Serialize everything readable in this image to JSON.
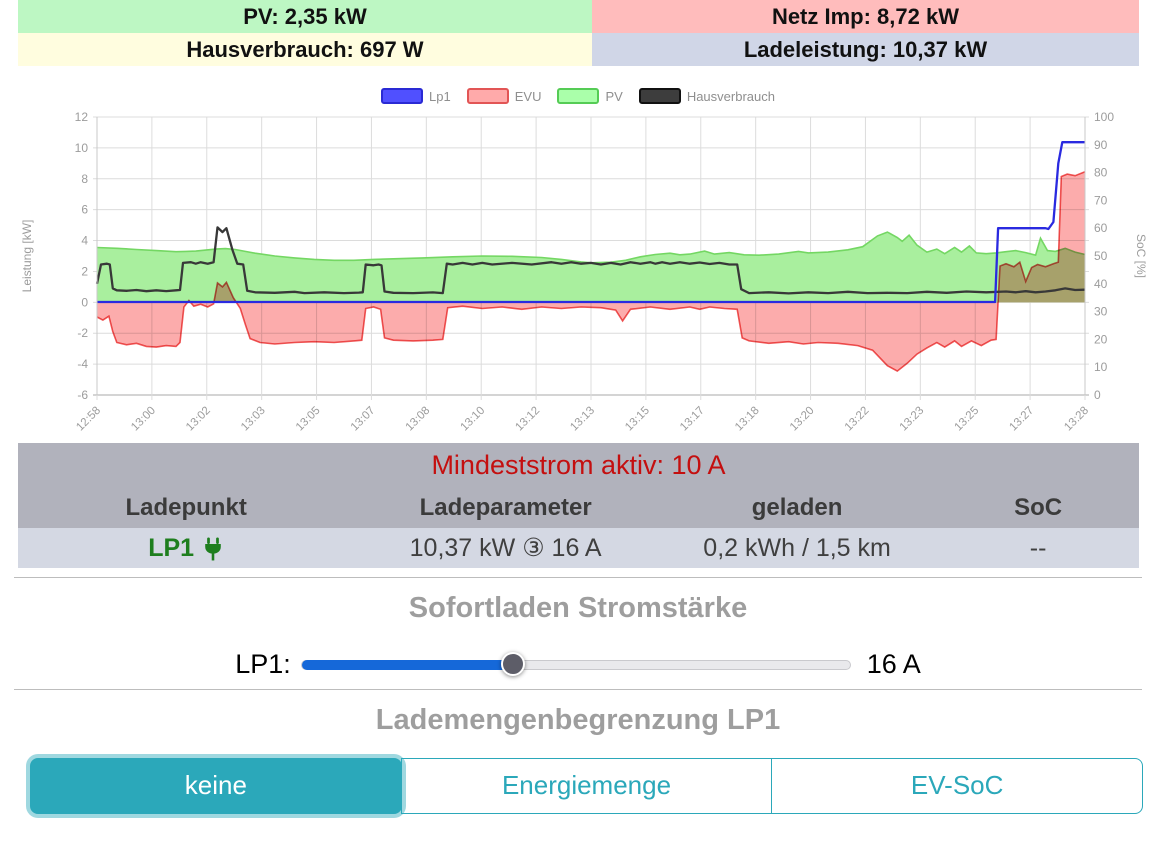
{
  "colors": {
    "accent_teal": "#2ba8ba",
    "slider_blue": "#1568d9",
    "lp1_green": "#1e7e1e",
    "caption_red": "#c40f0f",
    "table_header_bg": "#b1b2bc",
    "table_row_bg": "#d4d8e3"
  },
  "status_cells": {
    "pv": {
      "text": "PV: 2,35 kW",
      "bg": "#bdf7c3"
    },
    "grid": {
      "text": "Netz Imp: 8,72 kW",
      "bg": "#ffbcbc"
    },
    "house": {
      "text": "Hausverbrauch: 697 W",
      "bg": "#fffddf"
    },
    "charge": {
      "text": "Ladeleistung: 10,37 kW",
      "bg": "#d0d6e7"
    }
  },
  "chart_data": {
    "type": "area",
    "grid": true,
    "legend_position": "top",
    "left_axis": {
      "label": "Leistung [kW]",
      "min": -6,
      "max": 12,
      "tick_step": 2
    },
    "right_axis": {
      "label": "SoC [%]",
      "min": 0,
      "max": 100,
      "tick_step": 10
    },
    "x_ticks": [
      "12:58",
      "13:00",
      "13:02",
      "13:03",
      "13:05",
      "13:07",
      "13:08",
      "13:10",
      "13:12",
      "13:13",
      "13:15",
      "13:17",
      "13:18",
      "13:20",
      "13:22",
      "13:23",
      "13:25",
      "13:27",
      "13:28"
    ],
    "legend": [
      {
        "name": "Lp1",
        "fill": "#5050ff",
        "border": "#2a2ad4"
      },
      {
        "name": "EVU",
        "fill": "#ffaaaa",
        "border": "#e25555"
      },
      {
        "name": "PV",
        "fill": "#aaffaa",
        "border": "#55cc55"
      },
      {
        "name": "Hausverbrauch",
        "fill": "#3d3d3d",
        "border": "#111111"
      }
    ],
    "series": [
      {
        "name": "PV",
        "kind": "area",
        "unit": "kW",
        "fill": "#a9ef9e",
        "stroke": "#74d763",
        "points": [
          [
            0,
            3.55
          ],
          [
            0.02,
            3.5
          ],
          [
            0.04,
            3.42
          ],
          [
            0.06,
            3.35
          ],
          [
            0.08,
            3.28
          ],
          [
            0.09,
            3.3
          ],
          [
            0.1,
            3.32
          ],
          [
            0.11,
            3.38
          ],
          [
            0.12,
            3.45
          ],
          [
            0.13,
            3.48
          ],
          [
            0.14,
            3.42
          ],
          [
            0.15,
            3.3
          ],
          [
            0.16,
            3.18
          ],
          [
            0.18,
            3.0
          ],
          [
            0.2,
            2.88
          ],
          [
            0.22,
            2.78
          ],
          [
            0.24,
            2.72
          ],
          [
            0.26,
            2.72
          ],
          [
            0.28,
            2.78
          ],
          [
            0.3,
            2.82
          ],
          [
            0.33,
            2.88
          ],
          [
            0.36,
            2.95
          ],
          [
            0.39,
            3.0
          ],
          [
            0.42,
            2.98
          ],
          [
            0.45,
            2.9
          ],
          [
            0.47,
            2.78
          ],
          [
            0.49,
            2.62
          ],
          [
            0.5,
            2.56
          ],
          [
            0.52,
            2.6
          ],
          [
            0.535,
            2.72
          ],
          [
            0.55,
            2.95
          ],
          [
            0.565,
            3.1
          ],
          [
            0.58,
            3.18
          ],
          [
            0.59,
            3.08
          ],
          [
            0.6,
            3.12
          ],
          [
            0.615,
            3.32
          ],
          [
            0.625,
            3.12
          ],
          [
            0.64,
            3.22
          ],
          [
            0.655,
            3.08
          ],
          [
            0.67,
            3.05
          ],
          [
            0.69,
            3.12
          ],
          [
            0.71,
            3.3
          ],
          [
            0.72,
            3.2
          ],
          [
            0.74,
            3.25
          ],
          [
            0.76,
            3.4
          ],
          [
            0.775,
            3.6
          ],
          [
            0.79,
            4.3
          ],
          [
            0.8,
            4.55
          ],
          [
            0.81,
            4.2
          ],
          [
            0.815,
            3.95
          ],
          [
            0.822,
            4.35
          ],
          [
            0.83,
            3.7
          ],
          [
            0.84,
            3.25
          ],
          [
            0.85,
            3.45
          ],
          [
            0.858,
            3.15
          ],
          [
            0.868,
            3.55
          ],
          [
            0.875,
            3.25
          ],
          [
            0.883,
            3.65
          ],
          [
            0.89,
            3.2
          ],
          [
            0.9,
            3.15
          ],
          [
            0.91,
            3.2
          ],
          [
            0.92,
            3.28
          ],
          [
            0.93,
            3.35
          ],
          [
            0.94,
            3.22
          ],
          [
            0.95,
            3.05
          ],
          [
            0.955,
            4.15
          ],
          [
            0.962,
            3.35
          ],
          [
            0.97,
            3.3
          ],
          [
            0.98,
            3.5
          ],
          [
            0.99,
            3.25
          ],
          [
            1,
            3.1
          ]
        ]
      },
      {
        "name": "EVU",
        "kind": "area",
        "unit": "kW",
        "fill": "#fcacac",
        "stroke": "#ee5a5a",
        "blend": "multiply",
        "points": [
          [
            0,
            -0.95
          ],
          [
            0.006,
            -1.15
          ],
          [
            0.012,
            -0.9
          ],
          [
            0.016,
            -1.9
          ],
          [
            0.02,
            -2.6
          ],
          [
            0.03,
            -2.75
          ],
          [
            0.04,
            -2.65
          ],
          [
            0.05,
            -2.85
          ],
          [
            0.06,
            -2.9
          ],
          [
            0.07,
            -2.8
          ],
          [
            0.08,
            -2.85
          ],
          [
            0.084,
            -2.6
          ],
          [
            0.088,
            -0.3
          ],
          [
            0.093,
            0.12
          ],
          [
            0.098,
            -0.25
          ],
          [
            0.105,
            -0.12
          ],
          [
            0.112,
            -0.3
          ],
          [
            0.118,
            -0.1
          ],
          [
            0.122,
            1.25
          ],
          [
            0.127,
            1.0
          ],
          [
            0.131,
            1.3
          ],
          [
            0.138,
            0.3
          ],
          [
            0.145,
            -0.4
          ],
          [
            0.15,
            -1.4
          ],
          [
            0.155,
            -2.35
          ],
          [
            0.165,
            -2.6
          ],
          [
            0.18,
            -2.7
          ],
          [
            0.2,
            -2.6
          ],
          [
            0.22,
            -2.55
          ],
          [
            0.24,
            -2.6
          ],
          [
            0.26,
            -2.5
          ],
          [
            0.268,
            -2.45
          ],
          [
            0.272,
            -0.4
          ],
          [
            0.28,
            -0.3
          ],
          [
            0.287,
            -0.45
          ],
          [
            0.291,
            -2.3
          ],
          [
            0.3,
            -2.45
          ],
          [
            0.32,
            -2.5
          ],
          [
            0.34,
            -2.45
          ],
          [
            0.35,
            -2.4
          ],
          [
            0.355,
            -0.35
          ],
          [
            0.37,
            -0.25
          ],
          [
            0.39,
            -0.4
          ],
          [
            0.41,
            -0.3
          ],
          [
            0.43,
            -0.45
          ],
          [
            0.45,
            -0.3
          ],
          [
            0.47,
            -0.4
          ],
          [
            0.49,
            -0.3
          ],
          [
            0.51,
            -0.35
          ],
          [
            0.525,
            -0.5
          ],
          [
            0.532,
            -1.2
          ],
          [
            0.54,
            -0.45
          ],
          [
            0.56,
            -0.3
          ],
          [
            0.58,
            -0.45
          ],
          [
            0.6,
            -0.3
          ],
          [
            0.61,
            -0.45
          ],
          [
            0.62,
            -0.3
          ],
          [
            0.635,
            -0.4
          ],
          [
            0.648,
            -0.45
          ],
          [
            0.653,
            -2.3
          ],
          [
            0.66,
            -2.5
          ],
          [
            0.68,
            -2.65
          ],
          [
            0.7,
            -2.55
          ],
          [
            0.715,
            -2.7
          ],
          [
            0.73,
            -2.6
          ],
          [
            0.75,
            -2.65
          ],
          [
            0.77,
            -2.8
          ],
          [
            0.785,
            -3.1
          ],
          [
            0.8,
            -4.1
          ],
          [
            0.81,
            -4.45
          ],
          [
            0.82,
            -3.95
          ],
          [
            0.83,
            -3.35
          ],
          [
            0.84,
            -2.95
          ],
          [
            0.85,
            -2.6
          ],
          [
            0.858,
            -2.9
          ],
          [
            0.868,
            -2.5
          ],
          [
            0.875,
            -2.85
          ],
          [
            0.885,
            -2.5
          ],
          [
            0.895,
            -2.8
          ],
          [
            0.905,
            -2.45
          ],
          [
            0.91,
            -2.4
          ],
          [
            0.914,
            2.35
          ],
          [
            0.92,
            2.5
          ],
          [
            0.928,
            2.3
          ],
          [
            0.934,
            2.6
          ],
          [
            0.94,
            1.35
          ],
          [
            0.946,
            2.25
          ],
          [
            0.952,
            2.45
          ],
          [
            0.96,
            2.3
          ],
          [
            0.968,
            2.5
          ],
          [
            0.973,
            2.6
          ],
          [
            0.976,
            8.15
          ],
          [
            0.982,
            8.3
          ],
          [
            0.99,
            8.2
          ],
          [
            1,
            8.45
          ]
        ]
      },
      {
        "name": "Hausverbrauch",
        "kind": "line",
        "unit": "kW",
        "stroke": "#383838",
        "points": [
          [
            0,
            1.2
          ],
          [
            0.004,
            2.45
          ],
          [
            0.01,
            2.5
          ],
          [
            0.013,
            2.45
          ],
          [
            0.016,
            0.9
          ],
          [
            0.02,
            0.78
          ],
          [
            0.03,
            0.75
          ],
          [
            0.04,
            0.8
          ],
          [
            0.05,
            0.72
          ],
          [
            0.06,
            0.78
          ],
          [
            0.07,
            0.73
          ],
          [
            0.08,
            0.78
          ],
          [
            0.084,
            0.8
          ],
          [
            0.087,
            2.55
          ],
          [
            0.095,
            2.6
          ],
          [
            0.1,
            2.5
          ],
          [
            0.105,
            2.6
          ],
          [
            0.112,
            2.5
          ],
          [
            0.118,
            2.6
          ],
          [
            0.122,
            4.85
          ],
          [
            0.127,
            4.55
          ],
          [
            0.131,
            4.8
          ],
          [
            0.137,
            3.4
          ],
          [
            0.142,
            2.5
          ],
          [
            0.148,
            2.45
          ],
          [
            0.152,
            0.75
          ],
          [
            0.16,
            0.65
          ],
          [
            0.18,
            0.62
          ],
          [
            0.2,
            0.68
          ],
          [
            0.21,
            0.6
          ],
          [
            0.23,
            0.65
          ],
          [
            0.25,
            0.6
          ],
          [
            0.265,
            0.63
          ],
          [
            0.269,
            0.65
          ],
          [
            0.272,
            2.45
          ],
          [
            0.28,
            2.4
          ],
          [
            0.285,
            2.45
          ],
          [
            0.288,
            2.4
          ],
          [
            0.291,
            0.7
          ],
          [
            0.3,
            0.62
          ],
          [
            0.32,
            0.6
          ],
          [
            0.34,
            0.64
          ],
          [
            0.35,
            0.6
          ],
          [
            0.354,
            2.5
          ],
          [
            0.36,
            2.45
          ],
          [
            0.37,
            2.55
          ],
          [
            0.38,
            2.45
          ],
          [
            0.39,
            2.55
          ],
          [
            0.4,
            2.45
          ],
          [
            0.42,
            2.55
          ],
          [
            0.44,
            2.45
          ],
          [
            0.46,
            2.6
          ],
          [
            0.47,
            2.5
          ],
          [
            0.48,
            2.6
          ],
          [
            0.49,
            2.5
          ],
          [
            0.5,
            2.55
          ],
          [
            0.51,
            2.45
          ],
          [
            0.52,
            2.55
          ],
          [
            0.53,
            2.45
          ],
          [
            0.54,
            2.6
          ],
          [
            0.55,
            2.5
          ],
          [
            0.56,
            2.6
          ],
          [
            0.565,
            2.5
          ],
          [
            0.572,
            2.6
          ],
          [
            0.58,
            2.5
          ],
          [
            0.59,
            2.6
          ],
          [
            0.6,
            2.5
          ],
          [
            0.61,
            2.58
          ],
          [
            0.62,
            2.48
          ],
          [
            0.63,
            2.55
          ],
          [
            0.64,
            2.45
          ],
          [
            0.648,
            2.45
          ],
          [
            0.652,
            0.85
          ],
          [
            0.66,
            0.6
          ],
          [
            0.68,
            0.65
          ],
          [
            0.7,
            0.58
          ],
          [
            0.72,
            0.65
          ],
          [
            0.74,
            0.6
          ],
          [
            0.76,
            0.68
          ],
          [
            0.78,
            0.6
          ],
          [
            0.8,
            0.62
          ],
          [
            0.82,
            0.6
          ],
          [
            0.84,
            0.68
          ],
          [
            0.86,
            0.62
          ],
          [
            0.88,
            0.7
          ],
          [
            0.9,
            0.65
          ],
          [
            0.92,
            0.7
          ],
          [
            0.93,
            0.65
          ],
          [
            0.94,
            0.72
          ],
          [
            0.95,
            0.65
          ],
          [
            0.96,
            0.7
          ],
          [
            0.97,
            0.78
          ],
          [
            0.98,
            0.9
          ],
          [
            0.99,
            0.8
          ],
          [
            1,
            0.82
          ]
        ]
      },
      {
        "name": "Lp1",
        "kind": "line",
        "unit": "kW",
        "stroke": "#2a2ae0",
        "points": [
          [
            0,
            0.02
          ],
          [
            0.909,
            0.02
          ],
          [
            0.912,
            4.8
          ],
          [
            0.96,
            4.8
          ],
          [
            0.963,
            4.75
          ],
          [
            0.968,
            5.2
          ],
          [
            0.973,
            9.0
          ],
          [
            0.977,
            10.37
          ],
          [
            1,
            10.37
          ]
        ]
      }
    ]
  },
  "table": {
    "caption": "Mindeststrom aktiv: 10 A",
    "headers": [
      "Ladepunkt",
      "Ladeparameter",
      "geladen",
      "SoC"
    ],
    "rows": [
      {
        "chargepoint": "LP1",
        "plugged": true,
        "parameters": "10,37 kW ③ 16 A",
        "charged": "0,2 kWh / 1,5 km",
        "soc": "--"
      }
    ]
  },
  "slider_section": {
    "title": "Sofortladen Stromstärke",
    "rows": [
      {
        "label": "LP1:",
        "value_label": "16 A",
        "min": 6,
        "max": 32,
        "value": 16
      }
    ]
  },
  "limit_section": {
    "title": "Lademengenbegrenzung LP1",
    "buttons": [
      {
        "label": "keine",
        "active": true
      },
      {
        "label": "Energiemenge",
        "active": false
      },
      {
        "label": "EV-SoC",
        "active": false
      }
    ]
  }
}
